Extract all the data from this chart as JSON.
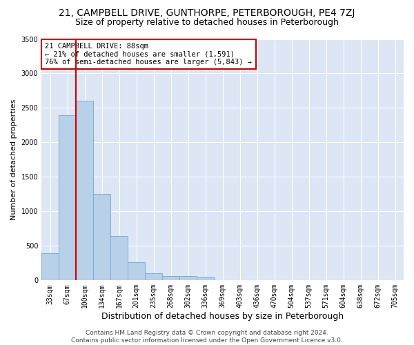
{
  "title_line1": "21, CAMPBELL DRIVE, GUNTHORPE, PETERBOROUGH, PE4 7ZJ",
  "title_line2": "Size of property relative to detached houses in Peterborough",
  "xlabel": "Distribution of detached houses by size in Peterborough",
  "ylabel": "Number of detached properties",
  "categories": [
    "33sqm",
    "67sqm",
    "100sqm",
    "134sqm",
    "167sqm",
    "201sqm",
    "235sqm",
    "268sqm",
    "302sqm",
    "336sqm",
    "369sqm",
    "403sqm",
    "436sqm",
    "470sqm",
    "504sqm",
    "537sqm",
    "571sqm",
    "604sqm",
    "638sqm",
    "672sqm",
    "705sqm"
  ],
  "values": [
    390,
    2390,
    2600,
    1250,
    640,
    265,
    100,
    60,
    60,
    45,
    0,
    0,
    0,
    0,
    0,
    0,
    0,
    0,
    0,
    0,
    0
  ],
  "bar_color": "#b8d0e8",
  "bar_edge_color": "#7aafd4",
  "vline_x": 1.5,
  "vline_color": "#cc0000",
  "annotation_text": "21 CAMPBELL DRIVE: 88sqm\n← 21% of detached houses are smaller (1,591)\n76% of semi-detached houses are larger (5,843) →",
  "annotation_box_color": "#ffffff",
  "annotation_box_edge": "#cc0000",
  "ylim": [
    0,
    3500
  ],
  "yticks": [
    0,
    500,
    1000,
    1500,
    2000,
    2500,
    3000,
    3500
  ],
  "background_color": "#dce6f5",
  "grid_color": "#ffffff",
  "fig_background": "#ffffff",
  "footer_text": "Contains HM Land Registry data © Crown copyright and database right 2024.\nContains public sector information licensed under the Open Government Licence v3.0.",
  "title_fontsize": 10,
  "subtitle_fontsize": 9,
  "xlabel_fontsize": 9,
  "ylabel_fontsize": 8,
  "tick_fontsize": 7,
  "annotation_fontsize": 7.5,
  "footer_fontsize": 6.5
}
